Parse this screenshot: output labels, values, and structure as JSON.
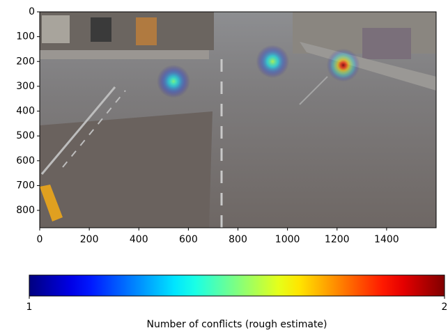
{
  "chart_data": {
    "type": "heatmap",
    "x": [
      540,
      940,
      1225
    ],
    "y": [
      280,
      200,
      215
    ],
    "values": [
      1.5,
      1.55,
      2
    ],
    "xlim": [
      0,
      1600
    ],
    "ylim": [
      870,
      0
    ],
    "xticks": [
      0,
      200,
      400,
      600,
      800,
      1000,
      1200,
      1400
    ],
    "yticks": [
      0,
      100,
      200,
      300,
      400,
      500,
      600,
      700,
      800
    ],
    "clim": [
      1,
      2
    ],
    "cticks": [
      1,
      2
    ],
    "colormap": "jet",
    "colorbar_label": "Number of conflicts (rough estimate)"
  }
}
